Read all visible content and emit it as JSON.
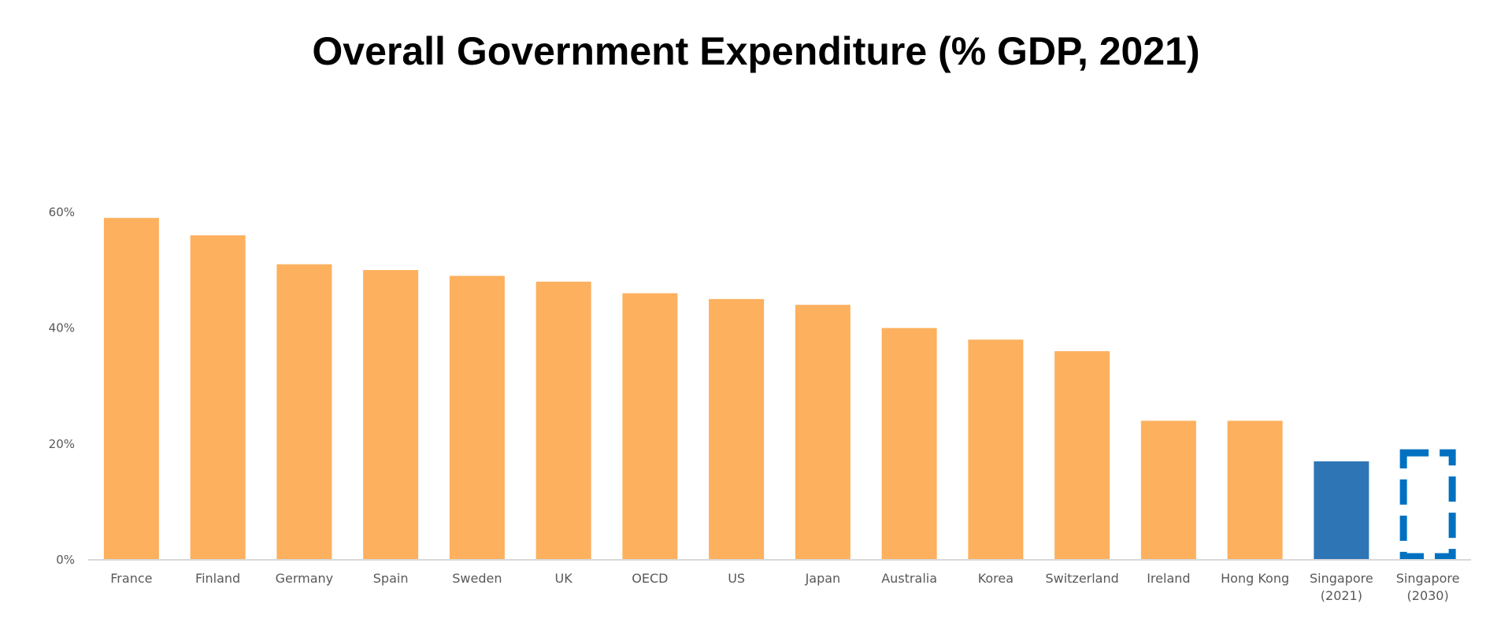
{
  "chart_data": {
    "type": "bar",
    "title": "Overall Government Expenditure (% GDP, 2021)",
    "xlabel": "",
    "ylabel": "",
    "ylim": [
      0,
      60
    ],
    "yticks": [
      "0%",
      "20%",
      "40%",
      "60%"
    ],
    "ytick_values": [
      0,
      20,
      40,
      60
    ],
    "grid": false,
    "categories": [
      [
        "France"
      ],
      [
        "Finland"
      ],
      [
        "Germany"
      ],
      [
        "Spain"
      ],
      [
        "Sweden"
      ],
      [
        "UK"
      ],
      [
        "OECD"
      ],
      [
        "US"
      ],
      [
        "Japan"
      ],
      [
        "Australia"
      ],
      [
        "Korea"
      ],
      [
        "Switzerland"
      ],
      [
        "Ireland"
      ],
      [
        "Hong Kong"
      ],
      [
        "Singapore",
        "(2021)"
      ],
      [
        "Singapore",
        "(2030)"
      ]
    ],
    "values": [
      59,
      56,
      51,
      50,
      49,
      48,
      46,
      45,
      44,
      40,
      38,
      36,
      24,
      24,
      17,
      19
    ],
    "bar_styles": [
      "solid",
      "solid",
      "solid",
      "solid",
      "solid",
      "solid",
      "solid",
      "solid",
      "solid",
      "solid",
      "solid",
      "solid",
      "solid",
      "solid",
      "solid",
      "dashed-outline"
    ],
    "colors": {
      "default_bar": "#FDB05E",
      "highlight_bar": "#2E75B6",
      "outline_bar": "#0070C0",
      "axis": "#D9D9D9"
    },
    "highlight_index": 14,
    "outline_index": 15
  }
}
